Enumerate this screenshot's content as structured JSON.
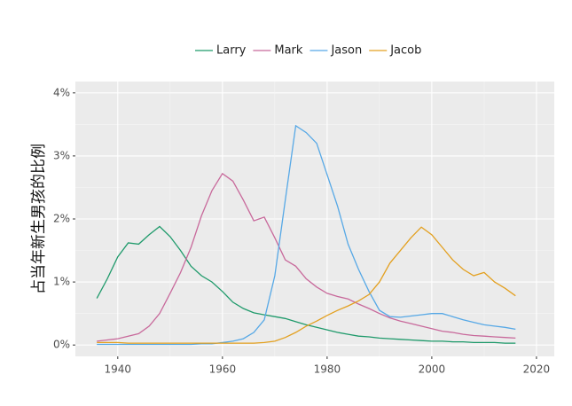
{
  "chart_data": {
    "type": "line",
    "y_label": "占当年新生男孩的比例",
    "x": [
      1936,
      1938,
      1940,
      1942,
      1944,
      1946,
      1948,
      1950,
      1952,
      1954,
      1956,
      1958,
      1960,
      1962,
      1964,
      1966,
      1968,
      1970,
      1972,
      1974,
      1976,
      1978,
      1980,
      1982,
      1984,
      1986,
      1988,
      1990,
      1992,
      1994,
      1996,
      1998,
      2000,
      2002,
      2004,
      2006,
      2008,
      2010,
      2012,
      2014,
      2016
    ],
    "series": [
      {
        "name": "Larry",
        "color": "#1f9a6b",
        "values": [
          0.74,
          1.05,
          1.4,
          1.62,
          1.6,
          1.75,
          1.88,
          1.72,
          1.5,
          1.25,
          1.1,
          1.0,
          0.85,
          0.68,
          0.58,
          0.51,
          0.48,
          0.45,
          0.42,
          0.37,
          0.32,
          0.28,
          0.24,
          0.2,
          0.17,
          0.14,
          0.13,
          0.11,
          0.1,
          0.09,
          0.08,
          0.07,
          0.06,
          0.06,
          0.05,
          0.05,
          0.04,
          0.04,
          0.04,
          0.03,
          0.03
        ]
      },
      {
        "name": "Mark",
        "color": "#c8699b",
        "values": [
          0.06,
          0.08,
          0.1,
          0.14,
          0.18,
          0.3,
          0.5,
          0.82,
          1.15,
          1.55,
          2.05,
          2.45,
          2.72,
          2.6,
          2.3,
          1.97,
          2.03,
          1.7,
          1.35,
          1.25,
          1.05,
          0.92,
          0.82,
          0.77,
          0.73,
          0.65,
          0.58,
          0.5,
          0.43,
          0.38,
          0.34,
          0.3,
          0.26,
          0.22,
          0.2,
          0.17,
          0.15,
          0.14,
          0.13,
          0.12,
          0.11
        ]
      },
      {
        "name": "Jason",
        "color": "#56a8e6",
        "values": [
          0.01,
          0.01,
          0.01,
          0.01,
          0.01,
          0.01,
          0.01,
          0.01,
          0.01,
          0.01,
          0.02,
          0.02,
          0.04,
          0.06,
          0.1,
          0.2,
          0.4,
          1.1,
          2.3,
          3.48,
          3.37,
          3.2,
          2.7,
          2.2,
          1.6,
          1.2,
          0.85,
          0.55,
          0.45,
          0.44,
          0.46,
          0.48,
          0.5,
          0.5,
          0.45,
          0.4,
          0.36,
          0.32,
          0.3,
          0.28,
          0.25
        ]
      },
      {
        "name": "Jacob",
        "color": "#e3a020",
        "values": [
          0.04,
          0.04,
          0.04,
          0.03,
          0.03,
          0.03,
          0.03,
          0.03,
          0.03,
          0.03,
          0.03,
          0.03,
          0.03,
          0.03,
          0.03,
          0.03,
          0.04,
          0.06,
          0.12,
          0.2,
          0.3,
          0.38,
          0.47,
          0.55,
          0.62,
          0.7,
          0.8,
          1.0,
          1.3,
          1.5,
          1.7,
          1.87,
          1.75,
          1.55,
          1.35,
          1.2,
          1.1,
          1.15,
          1.0,
          0.9,
          0.78
        ]
      }
    ],
    "xlim": [
      1931.9,
      2023.4
    ],
    "xticks": [
      1940,
      1960,
      1980,
      2000,
      2020
    ],
    "ylim": [
      -0.18,
      4.18
    ],
    "yticks": [
      {
        "value": 0,
        "label": "0%"
      },
      {
        "value": 1,
        "label": "1%"
      },
      {
        "value": 2,
        "label": "2%"
      },
      {
        "value": 3,
        "label": "3%"
      },
      {
        "value": 4,
        "label": "4%"
      }
    ],
    "grid": true,
    "legend": "top"
  }
}
